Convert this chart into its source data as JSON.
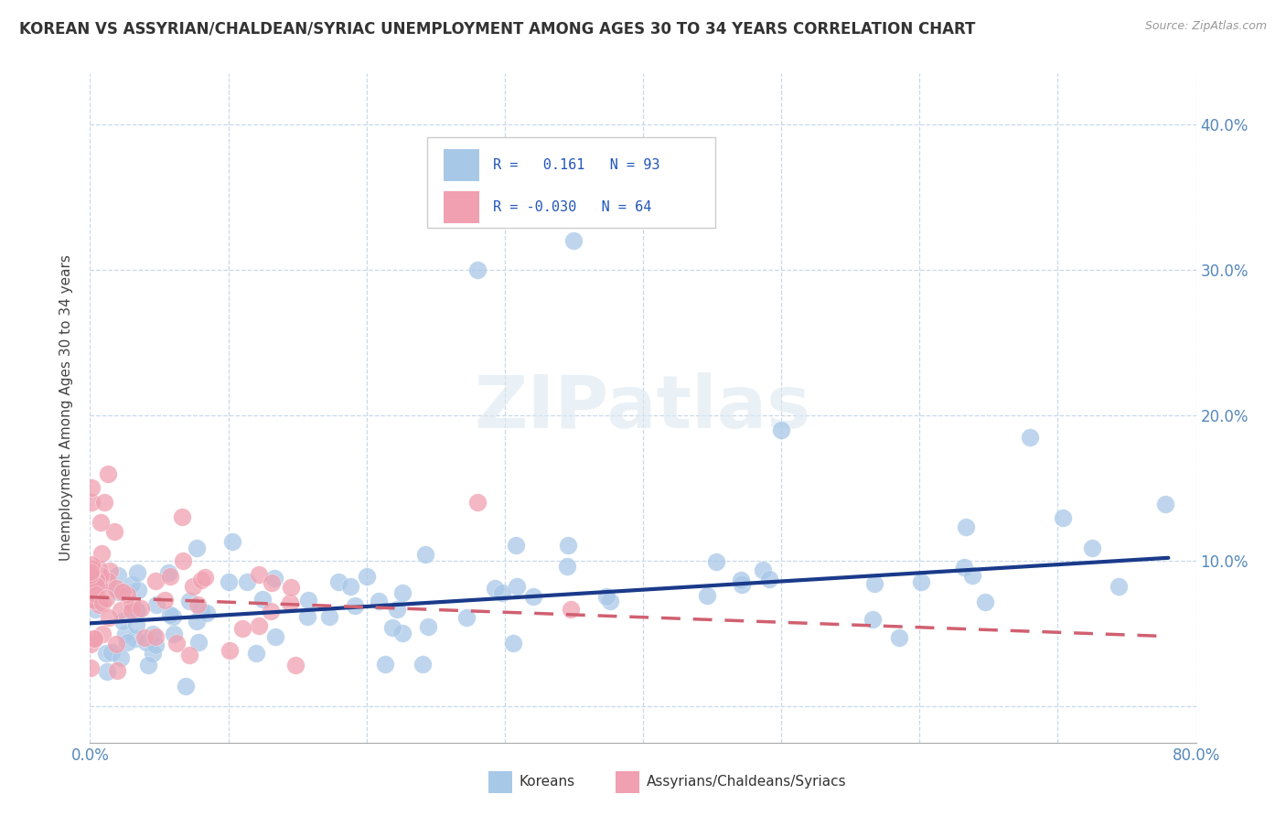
{
  "title": "KOREAN VS ASSYRIAN/CHALDEAN/SYRIAC UNEMPLOYMENT AMONG AGES 30 TO 34 YEARS CORRELATION CHART",
  "source": "Source: ZipAtlas.com",
  "ylabel_label": "Unemployment Among Ages 30 to 34 years",
  "ytick_values": [
    0.0,
    0.1,
    0.2,
    0.3,
    0.4
  ],
  "ytick_labels_right": [
    "",
    "10.0%",
    "20.0%",
    "30.0%",
    "40.0%"
  ],
  "xlim": [
    0.0,
    0.8
  ],
  "ylim": [
    -0.025,
    0.435
  ],
  "korean_color": "#a8c8e8",
  "assyrian_color": "#f0a0b0",
  "korean_line_color": "#1a3a8a",
  "assyrian_line_color": "#d06070",
  "background_color": "#ffffff",
  "grid_color": "#c8d8ea",
  "watermark": "ZIPatlas",
  "korean_line_x0": 0.0,
  "korean_line_y0": 0.057,
  "korean_line_x1": 0.78,
  "korean_line_y1": 0.102,
  "assyrian_line_x0": 0.0,
  "assyrian_line_y0": 0.075,
  "assyrian_line_x1": 0.78,
  "assyrian_line_y1": 0.048
}
